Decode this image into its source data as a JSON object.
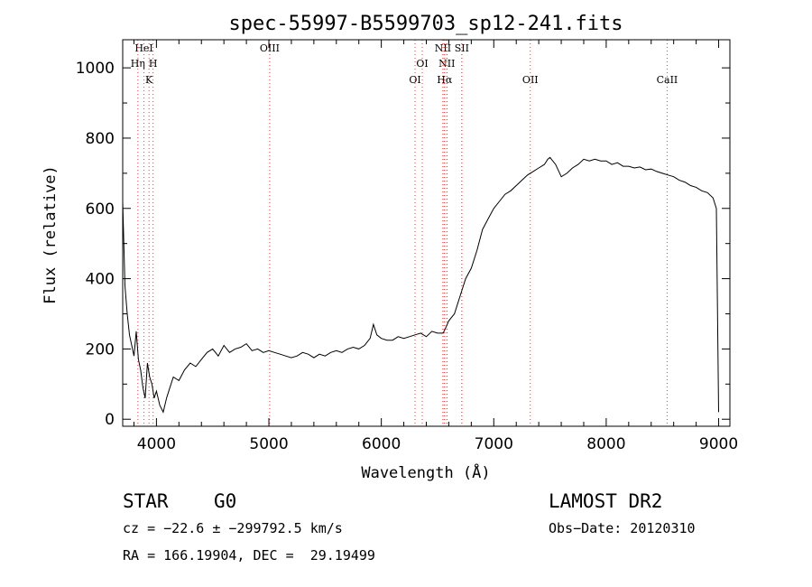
{
  "chart_data": {
    "type": "line",
    "title": "spec-55997-B5599703_sp12-241.fits",
    "xlabel": "Wavelength (Å)",
    "ylabel": "Flux (relative)",
    "xlim": [
      3700,
      9100
    ],
    "ylim": [
      -20,
      1080
    ],
    "x_ticks": [
      4000,
      5000,
      6000,
      7000,
      8000,
      9000
    ],
    "y_ticks": [
      0,
      200,
      400,
      600,
      800,
      1000
    ],
    "grid": false,
    "series": [
      {
        "x": [
          3700,
          3720,
          3740,
          3760,
          3780,
          3800,
          3820,
          3840,
          3860,
          3880,
          3900,
          3920,
          3940,
          3960,
          3980,
          4000,
          4030,
          4060,
          4090,
          4120,
          4150,
          4200,
          4250,
          4300,
          4350,
          4400,
          4450,
          4500,
          4550,
          4600,
          4650,
          4700,
          4750,
          4800,
          4850,
          4900,
          4950,
          5000,
          5050,
          5100,
          5150,
          5200,
          5250,
          5300,
          5350,
          5400,
          5450,
          5500,
          5550,
          5600,
          5650,
          5700,
          5750,
          5800,
          5850,
          5900,
          5930,
          5960,
          6000,
          6050,
          6100,
          6150,
          6200,
          6250,
          6300,
          6350,
          6400,
          6450,
          6500,
          6550,
          6580,
          6600,
          6650,
          6700,
          6750,
          6800,
          6850,
          6900,
          6950,
          7000,
          7050,
          7100,
          7150,
          7200,
          7250,
          7300,
          7350,
          7400,
          7450,
          7480,
          7500,
          7550,
          7600,
          7650,
          7700,
          7750,
          7800,
          7850,
          7900,
          7950,
          8000,
          8050,
          8100,
          8150,
          8200,
          8250,
          8300,
          8350,
          8400,
          8450,
          8500,
          8550,
          8600,
          8650,
          8700,
          8750,
          8800,
          8850,
          8900,
          8950,
          8980,
          8990,
          9000
        ],
        "y": [
          620,
          380,
          300,
          240,
          210,
          180,
          250,
          170,
          140,
          90,
          60,
          160,
          120,
          100,
          60,
          80,
          40,
          20,
          60,
          90,
          120,
          110,
          140,
          160,
          150,
          170,
          190,
          200,
          180,
          210,
          190,
          200,
          205,
          215,
          195,
          200,
          190,
          195,
          190,
          185,
          180,
          175,
          180,
          190,
          185,
          175,
          185,
          180,
          190,
          195,
          190,
          200,
          205,
          200,
          210,
          230,
          270,
          240,
          230,
          225,
          225,
          235,
          230,
          235,
          240,
          245,
          235,
          250,
          245,
          245,
          265,
          280,
          300,
          350,
          400,
          430,
          480,
          540,
          570,
          600,
          620,
          640,
          650,
          665,
          680,
          695,
          705,
          715,
          725,
          740,
          745,
          725,
          690,
          700,
          715,
          725,
          740,
          735,
          740,
          735,
          735,
          725,
          730,
          720,
          720,
          715,
          718,
          710,
          712,
          705,
          700,
          695,
          690,
          680,
          675,
          665,
          660,
          650,
          645,
          630,
          600,
          300,
          20
        ]
      }
    ],
    "reference_lines": [
      {
        "label": "HeI",
        "x": 3889
      },
      {
        "label": "Hη",
        "x": 3835
      },
      {
        "label": "H",
        "x": 3970
      },
      {
        "label": "K",
        "x": 3934
      },
      {
        "label": "OIII",
        "x": 5007
      },
      {
        "label": "OI",
        "x": 6300
      },
      {
        "label": "OI",
        "x": 6364
      },
      {
        "label": "NII",
        "x": 6548
      },
      {
        "label": "NII",
        "x": 6583
      },
      {
        "label": "Hα",
        "x": 6563
      },
      {
        "label": "SII",
        "x": 6716
      },
      {
        "label": "OII",
        "x": 7325
      },
      {
        "label": "CaII",
        "x": 8542
      }
    ]
  },
  "info": {
    "object_class": "STAR",
    "subclass": "G0",
    "survey": "LAMOST DR2",
    "redshift": "cz = −22.6 ± −299792.5 km/s",
    "obs_date": "Obs−Date: 20120310",
    "coords": "RA = 166.19904, DEC =  29.19499"
  },
  "colors": {
    "line": "#000000",
    "reference": "#d21a1a",
    "axis": "#000000"
  }
}
